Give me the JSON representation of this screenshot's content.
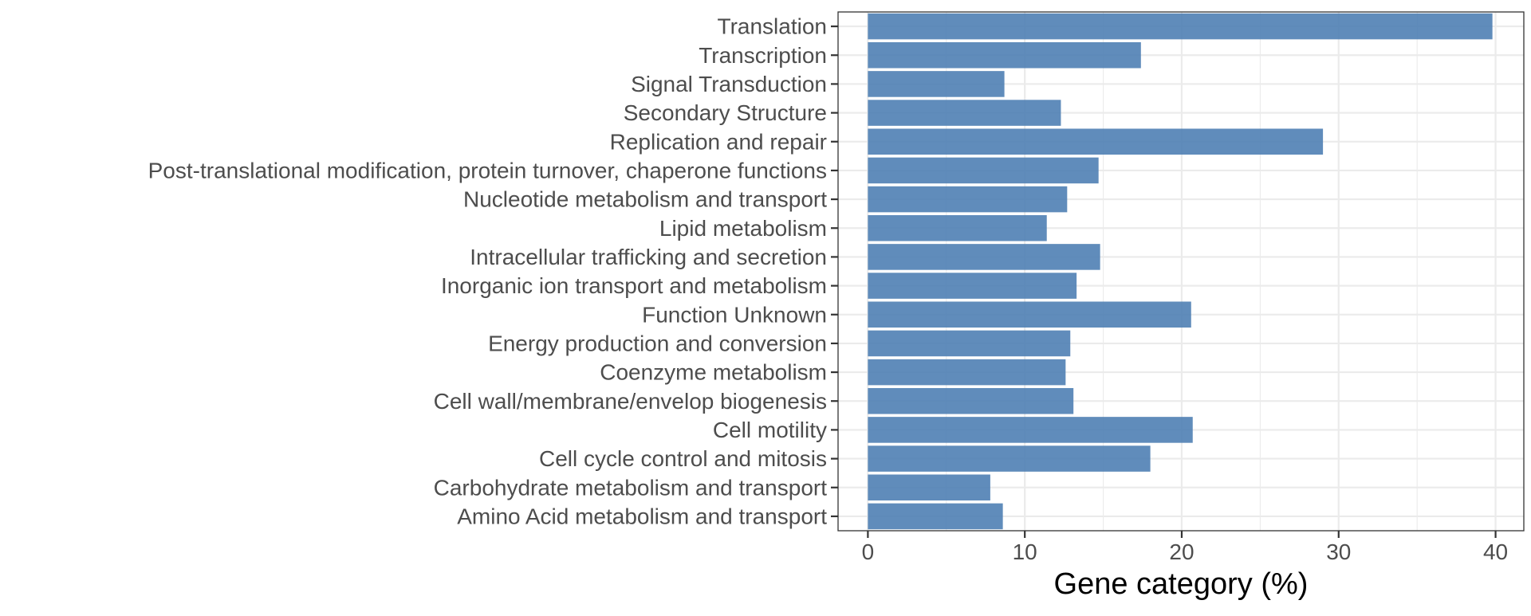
{
  "chart_data": {
    "type": "bar",
    "orientation": "horizontal",
    "categories": [
      "Translation",
      "Transcription",
      "Signal Transduction",
      "Secondary Structure",
      "Replication and repair",
      "Post-translational modification, protein turnover, chaperone functions",
      "Nucleotide metabolism and transport",
      "Lipid metabolism",
      "Intracellular trafficking and secretion",
      "Inorganic ion transport and metabolism",
      "Function Unknown",
      "Energy production and conversion",
      "Coenzyme metabolism",
      "Cell wall/membrane/envelop biogenesis",
      "Cell motility",
      "Cell cycle control and mitosis",
      "Carbohydrate metabolism and transport",
      "Amino Acid metabolism and transport"
    ],
    "values": [
      39.8,
      17.4,
      8.7,
      12.3,
      29.0,
      14.7,
      12.7,
      11.4,
      14.8,
      13.3,
      20.6,
      12.9,
      12.6,
      13.1,
      20.7,
      18.0,
      7.8,
      8.6
    ],
    "xlabel": "Gene category (%)",
    "ylabel": "",
    "xlim": [
      -1.9,
      41.8
    ],
    "xticks": [
      "0",
      "10",
      "20",
      "30",
      "40"
    ],
    "grid": true,
    "colors": {
      "bar": "#4f7fb4",
      "grid": "#ebebeb",
      "axis_text": "#4d4d4d",
      "title_text": "#000000",
      "panel_border": "#333333"
    }
  }
}
